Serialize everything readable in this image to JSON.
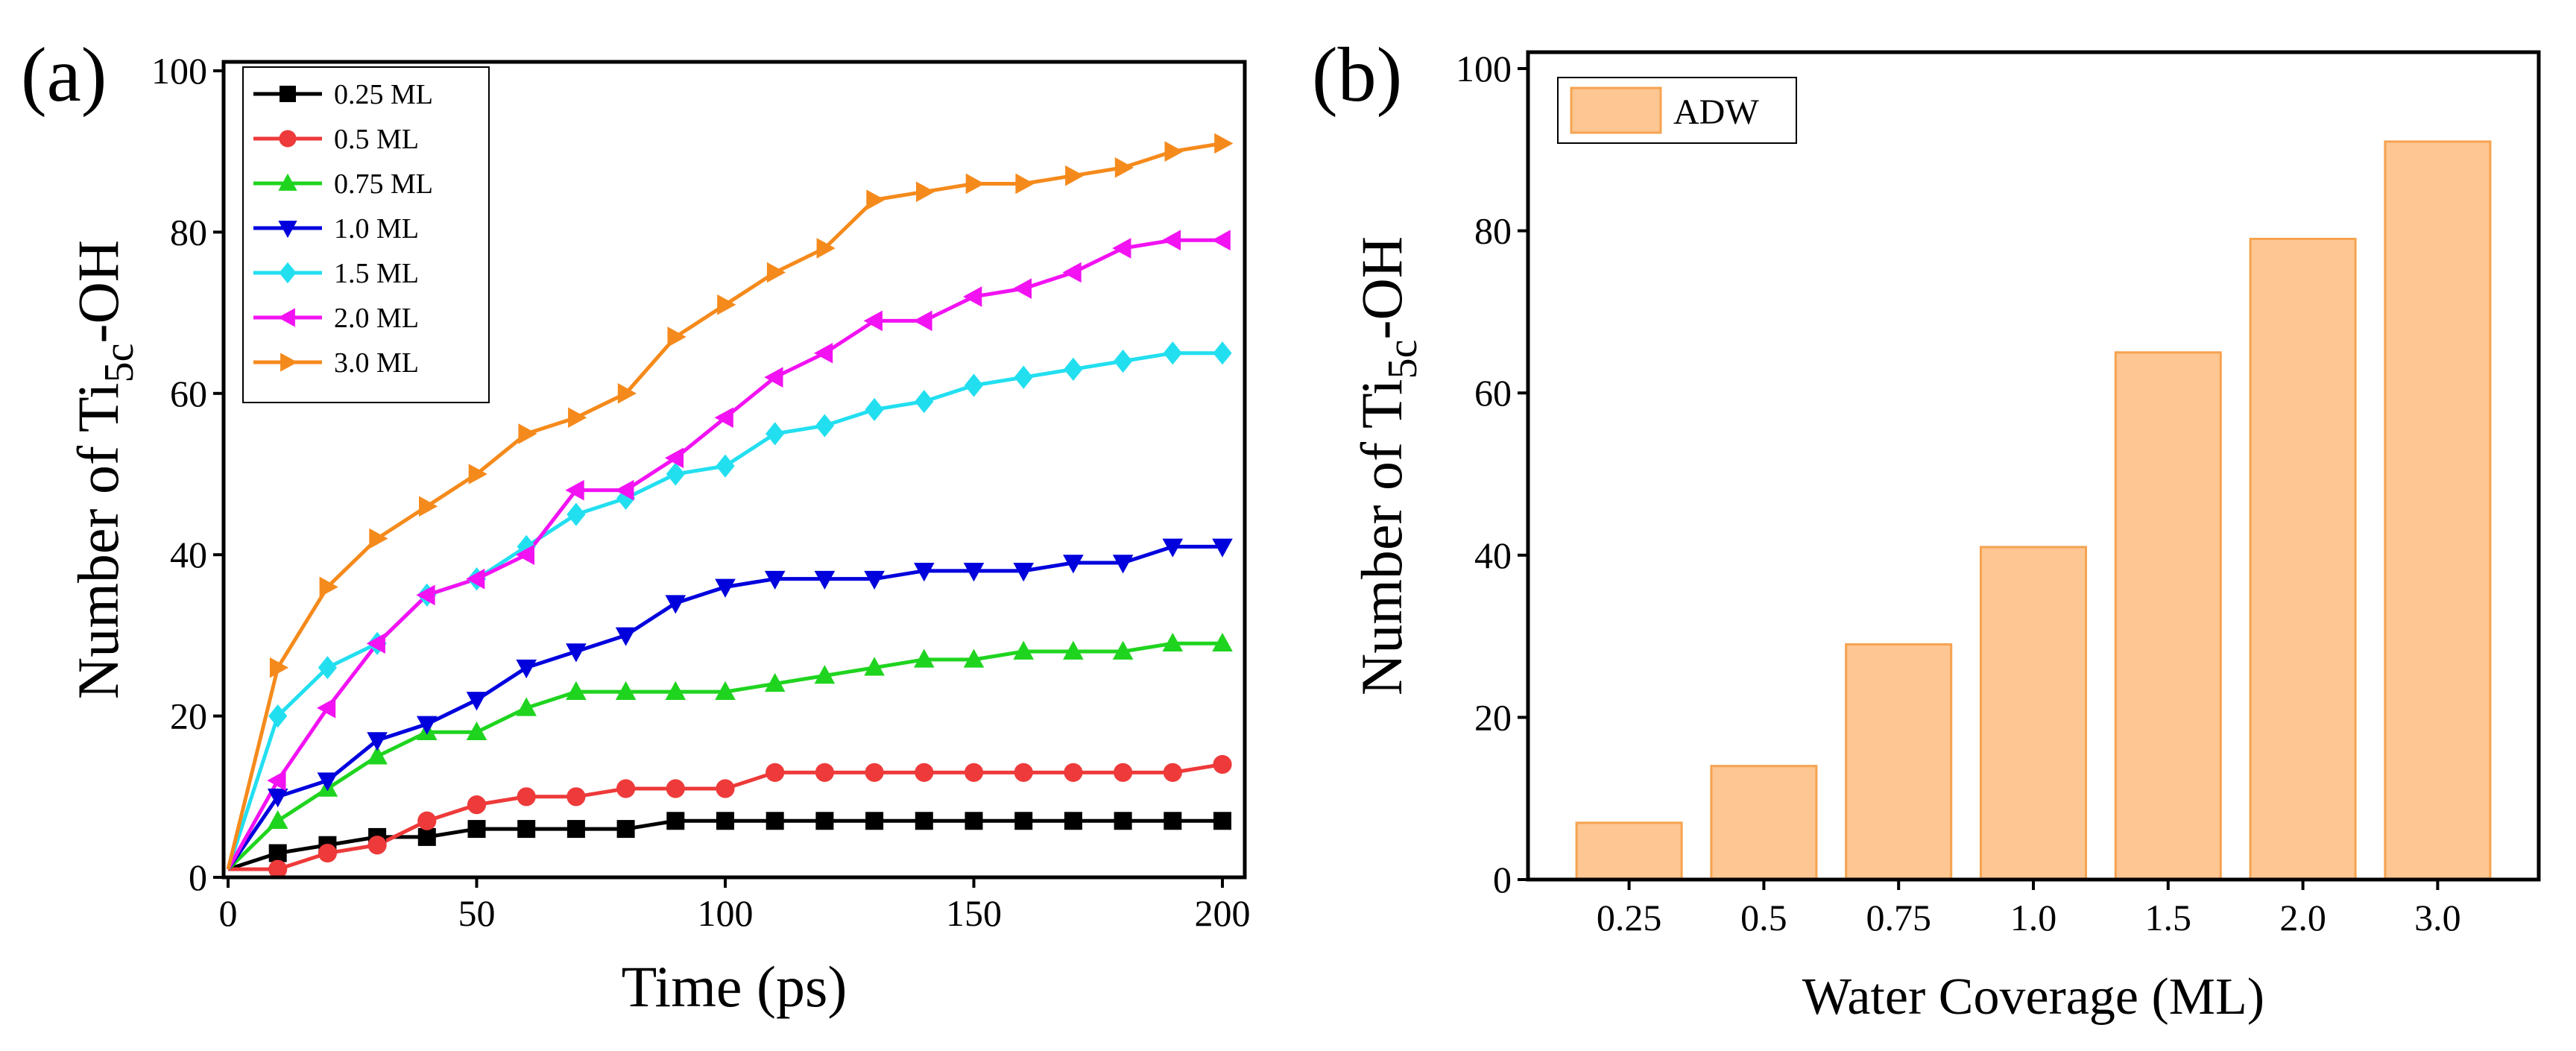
{
  "figure": {
    "panel_a_label": "(a)",
    "panel_b_label": "(b)"
  },
  "chart_data": [
    {
      "type": "line",
      "panel": "(a)",
      "xlabel": "Time (ps)",
      "ylabel": "Number of Ti5c-OH",
      "ylabel_parts": [
        "Number of Ti",
        "5c",
        "-OH"
      ],
      "xlim": [
        0,
        200
      ],
      "ylim": [
        0,
        100
      ],
      "xticks": [
        0,
        50,
        100,
        150,
        200
      ],
      "yticks": [
        0,
        20,
        40,
        60,
        80,
        100
      ],
      "x": [
        0,
        10,
        20,
        30,
        40,
        50,
        60,
        70,
        80,
        90,
        100,
        110,
        120,
        130,
        140,
        150,
        160,
        170,
        180,
        190,
        200
      ],
      "legend_position": "top-left",
      "series": [
        {
          "name": "0.25 ML",
          "color": "#000000",
          "marker": "square",
          "values": [
            1,
            3,
            4,
            5,
            5,
            6,
            6,
            6,
            6,
            7,
            7,
            7,
            7,
            7,
            7,
            7,
            7,
            7,
            7,
            7,
            7
          ]
        },
        {
          "name": "0.5 ML",
          "color": "#ee3a3a",
          "marker": "circle",
          "values": [
            1,
            1,
            3,
            4,
            7,
            9,
            10,
            10,
            11,
            11,
            11,
            13,
            13,
            13,
            13,
            13,
            13,
            13,
            13,
            13,
            14
          ]
        },
        {
          "name": "0.75 ML",
          "color": "#1fd41f",
          "marker": "triangle-up",
          "values": [
            1,
            7,
            11,
            15,
            18,
            18,
            21,
            23,
            23,
            23,
            23,
            24,
            25,
            26,
            27,
            27,
            28,
            28,
            28,
            29,
            29
          ]
        },
        {
          "name": "1.0 ML",
          "color": "#0000dd",
          "marker": "triangle-down",
          "values": [
            1,
            10,
            12,
            17,
            19,
            22,
            26,
            28,
            30,
            34,
            36,
            37,
            37,
            37,
            38,
            38,
            38,
            39,
            39,
            41,
            41
          ]
        },
        {
          "name": "1.5 ML",
          "color": "#22dff0",
          "marker": "diamond",
          "values": [
            1,
            20,
            26,
            29,
            35,
            37,
            41,
            45,
            47,
            50,
            51,
            55,
            56,
            58,
            59,
            61,
            62,
            63,
            64,
            65,
            65
          ]
        },
        {
          "name": "2.0 ML",
          "color": "#f212f2",
          "marker": "triangle-left",
          "values": [
            1,
            12,
            21,
            29,
            35,
            37,
            40,
            48,
            48,
            52,
            57,
            62,
            65,
            69,
            69,
            72,
            73,
            75,
            78,
            79,
            79
          ]
        },
        {
          "name": "3.0 ML",
          "color": "#f58a1c",
          "marker": "triangle-right",
          "values": [
            1,
            26,
            36,
            42,
            46,
            50,
            55,
            57,
            60,
            67,
            71,
            75,
            78,
            84,
            85,
            86,
            86,
            87,
            88,
            90,
            91
          ]
        }
      ]
    },
    {
      "type": "bar",
      "panel": "(b)",
      "xlabel": "Water Coverage (ML)",
      "ylabel": "Number of Ti5c-OH",
      "ylabel_parts": [
        "Number of Ti",
        "5c",
        "-OH"
      ],
      "categories": [
        "0.25",
        "0.5",
        "0.75",
        "1.0",
        "1.5",
        "2.0",
        "3.0"
      ],
      "series": [
        {
          "name": "ADW",
          "values": [
            7,
            14,
            29,
            41,
            65,
            79,
            91
          ]
        }
      ],
      "ylim": [
        0,
        100
      ],
      "yticks": [
        0,
        20,
        40,
        60,
        80,
        100
      ],
      "bar_color": "#fdc692",
      "bar_edge_color": "#f5a350",
      "legend_position": "top-left"
    }
  ]
}
